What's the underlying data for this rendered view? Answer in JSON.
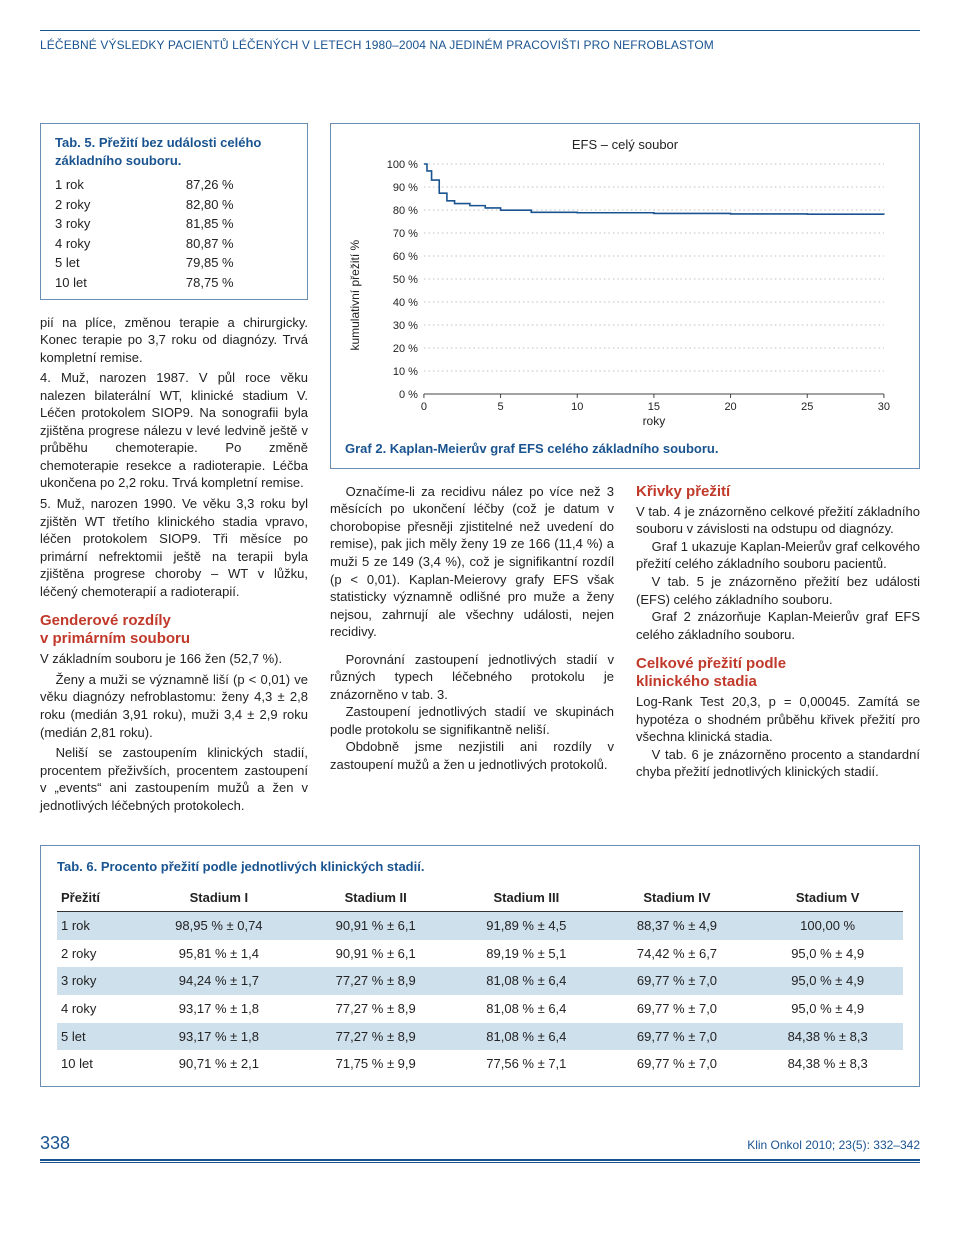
{
  "running_head": "LÉČEBNÉ VÝSLEDKY PACIENTŮ LÉČENÝCH V LETECH 1980–2004 NA JEDINÉM PRACOVIŠTI PRO NEFROBLASTOM",
  "tab5": {
    "title": "Tab. 5. Přežití bez události celého základního souboru.",
    "rows": [
      {
        "label": "1 rok",
        "value": "87,26 %"
      },
      {
        "label": "2 roky",
        "value": "82,80 %"
      },
      {
        "label": "3 roky",
        "value": "81,85 %"
      },
      {
        "label": "4 roky",
        "value": "80,87 %"
      },
      {
        "label": "5 let",
        "value": "79,85 %"
      },
      {
        "label": "10 let",
        "value": "78,75 %"
      }
    ]
  },
  "left_body": {
    "p1": "pií na plíce, změnou terapie a chirurgicky. Konec terapie po 3,7 roku od diagnózy. Trvá kompletní remise.",
    "p2": "4. Muž, narozen 1987. V půl roce věku nalezen bilaterální WT, klinické stadium V. Léčen protokolem SIOP9. Na sonografii byla zjištěna progrese nálezu v levé ledvině ještě v průběhu chemoterapie. Po změně chemoterapie resekce a radioterapie. Léčba ukončena po 2,2 roku. Trvá kompletní remise.",
    "p3": "5. Muž, narozen 1990. Ve věku 3,3 roku byl zjištěn WT třetího klinického stadia vpravo, léčen protokolem SIOP9. Tři měsíce po primární nefrektomii ještě na terapii byla zjištěna progrese choroby – WT v lůžku, léčený chemoterapií a radioterapií.",
    "gender_h1": "Genderové rozdíly",
    "gender_h2": "v primárním souboru",
    "p4": "V základním souboru je 166 žen (52,7 %).",
    "p5": "Ženy a muži se významně liší (p < 0,01) ve věku diagnózy nefroblastomu: ženy 4,3 ± 2,8 roku (medián 3,91 roku), muži 3,4 ± 2,9 roku (medián 2,81 roku).",
    "p6": "Neliší se zastoupením klinických stadií, procentem přeživších, procentem zastoupení v „events“ ani zastoupením mužů a žen v jednotlivých léčebných protokolech."
  },
  "chart": {
    "type": "line",
    "title": "EFS – celý soubor",
    "ylabel": "kumulativní přežití %",
    "xlabel": "roky",
    "xlim": [
      0,
      30
    ],
    "xtick_step": 5,
    "ylim_labels": [
      "0 %",
      "10 %",
      "20 %",
      "30 %",
      "40 %",
      "50 %",
      "60 %",
      "70 %",
      "80 %",
      "90 %",
      "100 %"
    ],
    "grid_color": "#bfbfbf",
    "line_color": "#1a5490",
    "background": "#ffffff",
    "series": [
      {
        "x": 0,
        "y": 100
      },
      {
        "x": 0.2,
        "y": 97
      },
      {
        "x": 0.5,
        "y": 93
      },
      {
        "x": 1,
        "y": 87.3
      },
      {
        "x": 1.5,
        "y": 84
      },
      {
        "x": 2,
        "y": 82.8
      },
      {
        "x": 3,
        "y": 81.9
      },
      {
        "x": 4,
        "y": 80.9
      },
      {
        "x": 5,
        "y": 79.9
      },
      {
        "x": 7,
        "y": 79.0
      },
      {
        "x": 10,
        "y": 78.8
      },
      {
        "x": 15,
        "y": 78.5
      },
      {
        "x": 20,
        "y": 78.3
      },
      {
        "x": 25,
        "y": 78.2
      },
      {
        "x": 30,
        "y": 78.0
      }
    ],
    "caption": "Graf 2. Kaplan-Meierův graf EFS celého základního souboru."
  },
  "mid_left": {
    "p1": "Označíme-li za recidivu nález po více než 3 měsících po ukončení léčby (což je datum v chorobopise přesněji zjistitelné než uvedení do remise), pak jich měly ženy 19 ze 166 (11,4 %) a muži 5 ze 149 (3,4 %), což je signifikantní rozdíl (p < 0,01). Kaplan-Meierovy grafy EFS však statisticky významně odlišné pro muže a ženy nejsou, zahrnují ale všechny události, nejen recidivy.",
    "p2": "Porovnání zastoupení jednotlivých stadií v různých typech léčebného protokolu je znázorněno v tab. 3.",
    "p3": "Zastoupení jednotlivých stadií ve skupinách podle protokolu se signifikantně neliší.",
    "p4": "Obdobně jsme nezjistili ani rozdíly v zastoupení mužů a žen u jednotlivých protokolů."
  },
  "mid_right": {
    "h1": "Křivky přežití",
    "p1": "V tab. 4 je znázorněno celkové přežití základního souboru v závislosti na odstupu od diagnózy.",
    "p2": "Graf 1 ukazuje Kaplan-Meierův graf celkového přežití celého základního souboru pacientů.",
    "p3": "V tab. 5 je znázorněno přežití bez události (EFS) celého základního souboru.",
    "p4": "Graf 2 znázorňuje Kaplan-Meierův graf EFS celého základního souboru.",
    "h2a": "Celkové přežití podle",
    "h2b": "klinického stadia",
    "p5": "Log-Rank Test 20,3, p = 0,00045. Zamítá se hypotéza o shodném průběhu křivek přežití pro všechna klinická stadia.",
    "p6": "V tab. 6 je znázorněno procento a standardní chyba přežití jednotlivých klinických stadií."
  },
  "tab6": {
    "title": "Tab. 6. Procento přežití podle jednotlivých klinických stadií.",
    "columns": [
      "Přežití",
      "Stadium I",
      "Stadium II",
      "Stadium III",
      "Stadium IV",
      "Stadium V"
    ],
    "rows": [
      [
        "1 rok",
        "98,95 % ± 0,74",
        "90,91 % ± 6,1",
        "91,89 % ± 4,5",
        "88,37 % ± 4,9",
        "100,00 %"
      ],
      [
        "2 roky",
        "95,81 % ± 1,4",
        "90,91 % ± 6,1",
        "89,19 % ± 5,1",
        "74,42 % ± 6,7",
        "95,0 % ± 4,9"
      ],
      [
        "3 roky",
        "94,24 % ± 1,7",
        "77,27 % ± 8,9",
        "81,08 % ± 6,4",
        "69,77 % ± 7,0",
        "95,0 % ± 4,9"
      ],
      [
        "4 roky",
        "93,17 % ± 1,8",
        "77,27 % ± 8,9",
        "81,08 % ± 6,4",
        "69,77 % ± 7,0",
        "95,0 % ± 4,9"
      ],
      [
        "5 let",
        "93,17 % ± 1,8",
        "77,27 % ± 8,9",
        "81,08 % ± 6,4",
        "69,77 % ± 7,0",
        "84,38 % ± 8,3"
      ],
      [
        "10 let",
        "90,71 % ± 2,1",
        "71,75 % ± 9,9",
        "77,56 % ± 7,1",
        "69,77 % ± 7,0",
        "84,38 % ± 8,3"
      ]
    ]
  },
  "footer": {
    "page": "338",
    "src": "Klin Onkol 2010; 23(5): 332–342"
  }
}
